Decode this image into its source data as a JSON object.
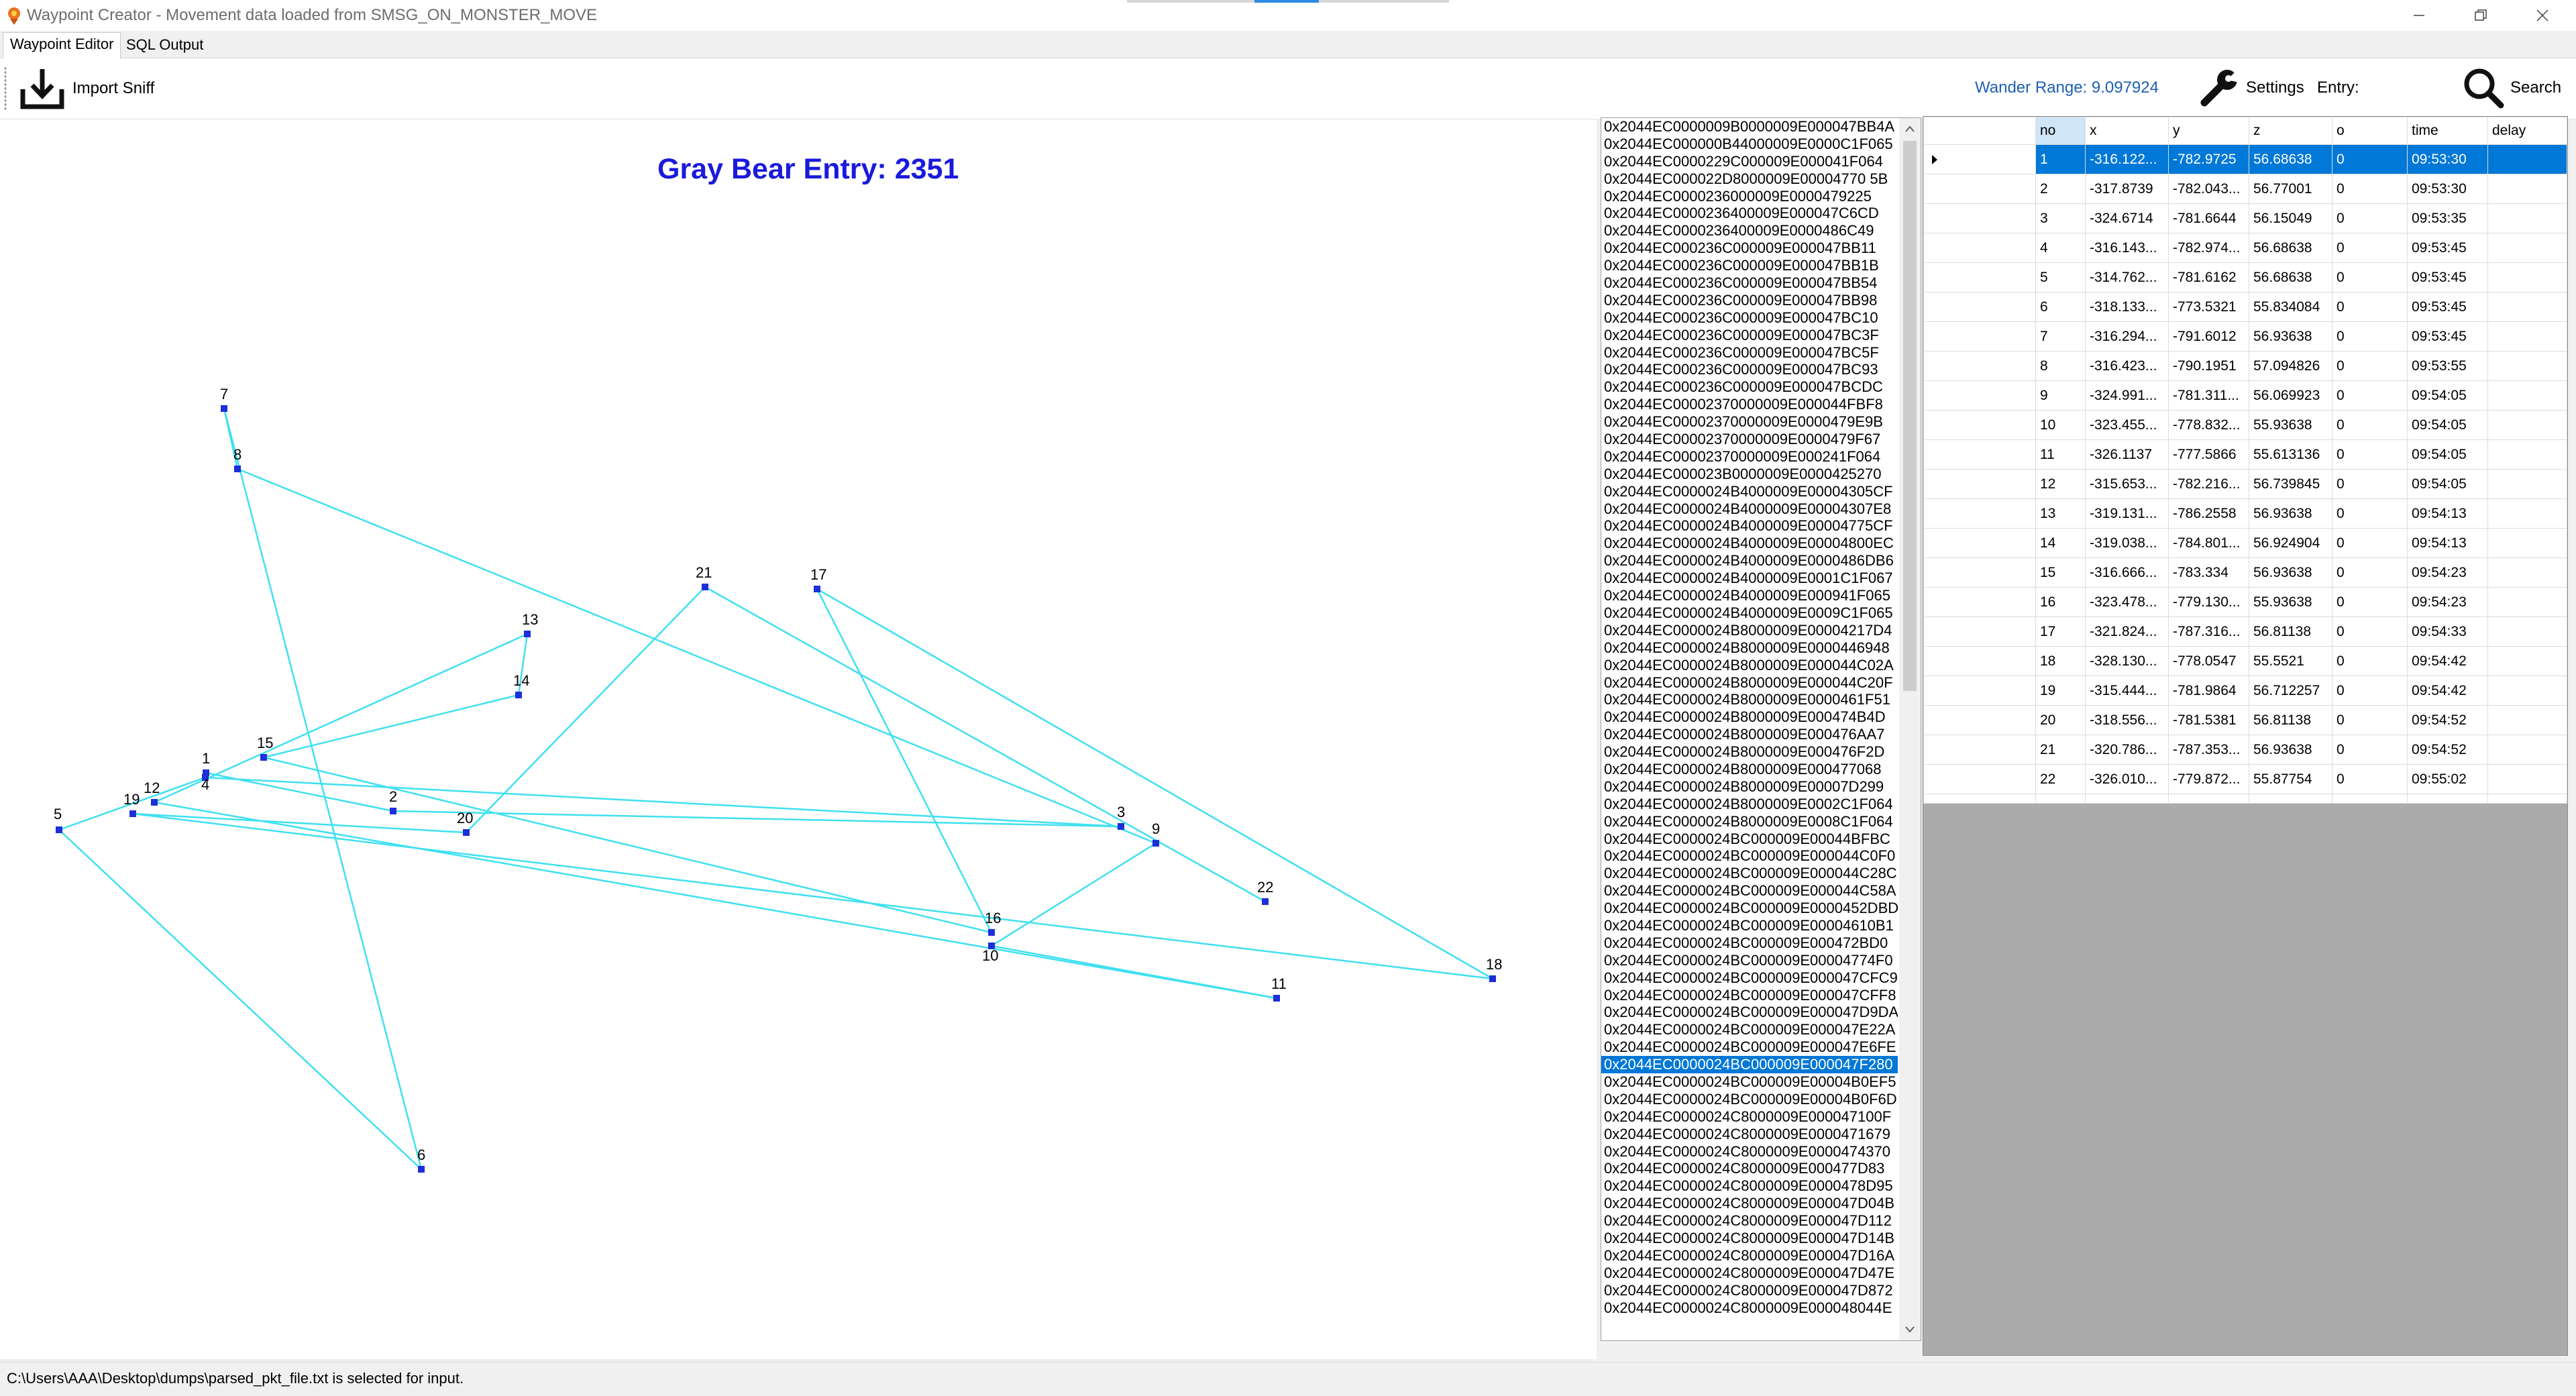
{
  "window": {
    "title": "Waypoint Creator - Movement data loaded from SMSG_ON_MONSTER_MOVE"
  },
  "tabs": [
    {
      "label": "Waypoint Editor",
      "active": true
    },
    {
      "label": "SQL Output",
      "active": false
    }
  ],
  "toolbar": {
    "import_label": "Import Sniff",
    "wander_range": "Wander Range: 9.097924",
    "settings_label": "Settings",
    "entry_label": "Entry:",
    "entry_value": "",
    "search_label": "Search",
    "wander_color": "#1e5fb4"
  },
  "canvas": {
    "title": "Gray Bear Entry: 2351",
    "title_color": "#1a1adc",
    "line_color": "#40e0f0",
    "point_color": "#1c2fd9",
    "point_labels": [
      "1",
      "2",
      "3",
      "4",
      "5",
      "6",
      "7",
      "8",
      "9",
      "10",
      "11",
      "12",
      "13",
      "14",
      "15",
      "16",
      "17",
      "18",
      "19",
      "20",
      "21",
      "22"
    ]
  },
  "guid_list": {
    "selected_index": 54,
    "items": [
      "0x2044EC0000009B0000009E000047BB4A",
      "0x2044EC000000B44000009E0000C1F065",
      "0x2044EC0000229C000009E000041F064",
      "0x2044EC000022D8000009E00004770 5B",
      "0x2044EC0000236000009E0000479225",
      "0x2044EC0000236400009E000047C6CD",
      "0x2044EC0000236400009E0000486C49",
      "0x2044EC000236C000009E000047BB11",
      "0x2044EC000236C000009E000047BB1B",
      "0x2044EC000236C000009E000047BB54",
      "0x2044EC000236C000009E000047BB98",
      "0x2044EC000236C000009E000047BC10",
      "0x2044EC000236C000009E000047BC3F",
      "0x2044EC000236C000009E000047BC5F",
      "0x2044EC000236C000009E000047BC93",
      "0x2044EC000236C000009E000047BCDC",
      "0x2044EC00002370000009E000044FBF8",
      "0x2044EC00002370000009E0000479E9B",
      "0x2044EC00002370000009E0000479F67",
      "0x2044EC00002370000009E000241F064",
      "0x2044EC000023B0000009E0000425270",
      "0x2044EC0000024B4000009E00004305CF",
      "0x2044EC0000024B4000009E00004307E8",
      "0x2044EC0000024B4000009E00004775CF",
      "0x2044EC0000024B4000009E00004800EC",
      "0x2044EC0000024B4000009E0000486DB6",
      "0x2044EC0000024B4000009E0001C1F067",
      "0x2044EC0000024B4000009E000941F065",
      "0x2044EC0000024B4000009E0009C1F065",
      "0x2044EC0000024B8000009E00004217D4",
      "0x2044EC0000024B8000009E0000446948",
      "0x2044EC0000024B8000009E000044C02A",
      "0x2044EC0000024B8000009E000044C20F",
      "0x2044EC0000024B8000009E0000461F51",
      "0x2044EC0000024B8000009E000474B4D",
      "0x2044EC0000024B8000009E000476AA7",
      "0x2044EC0000024B8000009E000476F2D",
      "0x2044EC0000024B8000009E000477068",
      "0x2044EC0000024B8000009E00007D299",
      "0x2044EC0000024B8000009E0002C1F064",
      "0x2044EC0000024B8000009E0008C1F064",
      "0x2044EC0000024BC000009E00044BFBC",
      "0x2044EC0000024BC000009E000044C0F0",
      "0x2044EC0000024BC000009E000044C28C",
      "0x2044EC0000024BC000009E000044C58A",
      "0x2044EC0000024BC000009E0000452DBD",
      "0x2044EC0000024BC000009E00004610B1",
      "0x2044EC0000024BC000009E000472BD0",
      "0x2044EC0000024BC000009E00004774F0",
      "0x2044EC0000024BC000009E000047CFC9",
      "0x2044EC0000024BC000009E000047CFF8",
      "0x2044EC0000024BC000009E000047D9DA",
      "0x2044EC0000024BC000009E000047E22A",
      "0x2044EC0000024BC000009E000047E6FE",
      "0x2044EC0000024BC000009E000047F280",
      "0x2044EC0000024BC000009E00004B0EF5",
      "0x2044EC0000024BC000009E00004B0F6D",
      "0x2044EC0000024C8000009E000047100F",
      "0x2044EC0000024C8000009E0000471679",
      "0x2044EC0000024C8000009E0000474370",
      "0x2044EC0000024C8000009E000477D83",
      "0x2044EC0000024C8000009E0000478D95",
      "0x2044EC0000024C8000009E000047D04B",
      "0x2044EC0000024C8000009E000047D112",
      "0x2044EC0000024C8000009E000047D14B",
      "0x2044EC0000024C8000009E000047D16A",
      "0x2044EC0000024C8000009E000047D47E",
      "0x2044EC0000024C8000009E000047D872",
      "0x2044EC0000024C8000009E000048044E"
    ]
  },
  "grid": {
    "columns": [
      "no",
      "x",
      "y",
      "z",
      "o",
      "time",
      "delay"
    ],
    "rows": [
      {
        "no": "1",
        "x": "-316.122...",
        "y": "-782.9725",
        "z": "56.68638",
        "o": "0",
        "time": "09:53:30",
        "delay": ""
      },
      {
        "no": "2",
        "x": "-317.8739",
        "y": "-782.043...",
        "z": "56.77001",
        "o": "0",
        "time": "09:53:30",
        "delay": ""
      },
      {
        "no": "3",
        "x": "-324.6714",
        "y": "-781.6644",
        "z": "56.15049",
        "o": "0",
        "time": "09:53:35",
        "delay": ""
      },
      {
        "no": "4",
        "x": "-316.143...",
        "y": "-782.974...",
        "z": "56.68638",
        "o": "0",
        "time": "09:53:45",
        "delay": ""
      },
      {
        "no": "5",
        "x": "-314.762...",
        "y": "-781.6162",
        "z": "56.68638",
        "o": "0",
        "time": "09:53:45",
        "delay": ""
      },
      {
        "no": "6",
        "x": "-318.133...",
        "y": "-773.5321",
        "z": "55.834084",
        "o": "0",
        "time": "09:53:45",
        "delay": ""
      },
      {
        "no": "7",
        "x": "-316.294...",
        "y": "-791.6012",
        "z": "56.93638",
        "o": "0",
        "time": "09:53:45",
        "delay": ""
      },
      {
        "no": "8",
        "x": "-316.423...",
        "y": "-790.1951",
        "z": "57.094826",
        "o": "0",
        "time": "09:53:55",
        "delay": ""
      },
      {
        "no": "9",
        "x": "-324.991...",
        "y": "-781.311...",
        "z": "56.069923",
        "o": "0",
        "time": "09:54:05",
        "delay": ""
      },
      {
        "no": "10",
        "x": "-323.455...",
        "y": "-778.832...",
        "z": "55.93638",
        "o": "0",
        "time": "09:54:05",
        "delay": ""
      },
      {
        "no": "11",
        "x": "-326.1137",
        "y": "-777.5866",
        "z": "55.613136",
        "o": "0",
        "time": "09:54:05",
        "delay": ""
      },
      {
        "no": "12",
        "x": "-315.653...",
        "y": "-782.216...",
        "z": "56.739845",
        "o": "0",
        "time": "09:54:05",
        "delay": ""
      },
      {
        "no": "13",
        "x": "-319.131...",
        "y": "-786.2558",
        "z": "56.93638",
        "o": "0",
        "time": "09:54:13",
        "delay": ""
      },
      {
        "no": "14",
        "x": "-319.038...",
        "y": "-784.801...",
        "z": "56.924904",
        "o": "0",
        "time": "09:54:13",
        "delay": ""
      },
      {
        "no": "15",
        "x": "-316.666...",
        "y": "-783.334",
        "z": "56.93638",
        "o": "0",
        "time": "09:54:23",
        "delay": ""
      },
      {
        "no": "16",
        "x": "-323.478...",
        "y": "-779.130...",
        "z": "55.93638",
        "o": "0",
        "time": "09:54:23",
        "delay": ""
      },
      {
        "no": "17",
        "x": "-321.824...",
        "y": "-787.316...",
        "z": "56.81138",
        "o": "0",
        "time": "09:54:33",
        "delay": ""
      },
      {
        "no": "18",
        "x": "-328.130...",
        "y": "-778.0547",
        "z": "55.5521",
        "o": "0",
        "time": "09:54:42",
        "delay": ""
      },
      {
        "no": "19",
        "x": "-315.444...",
        "y": "-781.9864",
        "z": "56.712257",
        "o": "0",
        "time": "09:54:42",
        "delay": ""
      },
      {
        "no": "20",
        "x": "-318.556...",
        "y": "-781.5381",
        "z": "56.81138",
        "o": "0",
        "time": "09:54:52",
        "delay": ""
      },
      {
        "no": "21",
        "x": "-320.786...",
        "y": "-787.353...",
        "z": "56.93638",
        "o": "0",
        "time": "09:54:52",
        "delay": ""
      },
      {
        "no": "22",
        "x": "-326.010...",
        "y": "-779.872...",
        "z": "55.87754",
        "o": "0",
        "time": "09:55:02",
        "delay": ""
      }
    ]
  },
  "status": {
    "text": "C:\\Users\\AAA\\Desktop\\dumps\\parsed_pkt_file.txt is selected for input."
  }
}
